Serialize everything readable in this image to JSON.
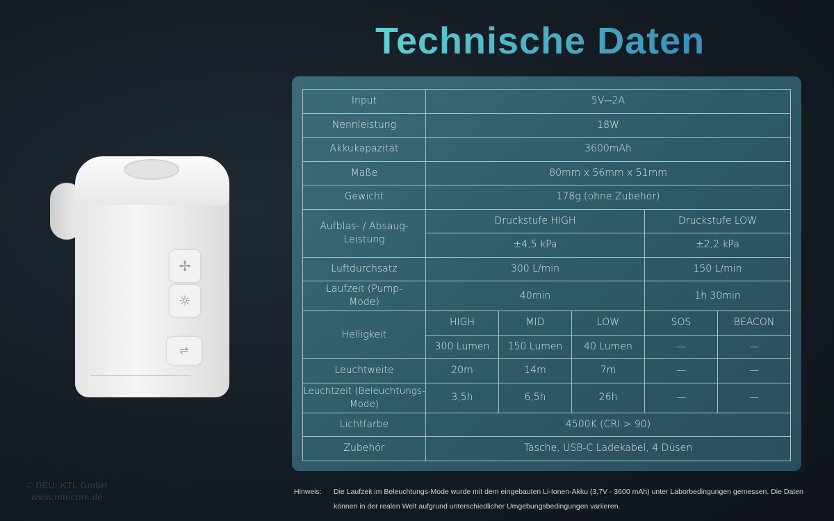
{
  "title": "Technische Daten",
  "table": {
    "input": {
      "label": "Input",
      "value": "5V⎓2A"
    },
    "power": {
      "label": "Nennleistung",
      "value": "18W"
    },
    "capacity": {
      "label": "Akkukapazität",
      "value": "3600mAh"
    },
    "dimensions": {
      "label": "Maße",
      "value": "80mm x 56mm x 51mm"
    },
    "weight": {
      "label": "Gewicht",
      "value": "178g (ohne Zubehör)"
    },
    "pressure": {
      "label": "Aufblas- / Absaug-Leistung",
      "high_label": "Druckstufe HIGH",
      "low_label": "Druckstufe LOW",
      "high": "±4,5 kPa",
      "low": "±2,2 kPa"
    },
    "airflow": {
      "label": "Luftdurchsatz",
      "high": "300 L/min",
      "low": "150 L/min"
    },
    "runtime_pump": {
      "label": "Laufzeit (Pump-Mode)",
      "high": "40min",
      "low": "1h 30min"
    },
    "brightness": {
      "label": "Helligkeit",
      "modes": [
        "HIGH",
        "MID",
        "LOW",
        "SOS",
        "BEACON"
      ],
      "values": [
        "300 Lumen",
        "150 Lumen",
        "40 Lumen",
        "—",
        "—"
      ]
    },
    "throw": {
      "label": "Leuchtweite",
      "values": [
        "20m",
        "14m",
        "7m",
        "—",
        "—"
      ]
    },
    "runtime_light": {
      "label": "Leuchtzeit (Beleuchtungs-Mode)",
      "values": [
        "3,5h",
        "6,5h",
        "26h",
        "—",
        "—"
      ]
    },
    "color": {
      "label": "Lichtfarbe",
      "value": "4500K (CRI > 90)"
    },
    "accessories": {
      "label": "Zubehör",
      "value": "Tasche, USB-C Ladekabel, 4 Düsen"
    }
  },
  "note": {
    "label": "Hinweis:",
    "text": "Die Laufzeit im Beleuchtungs-Mode wurde mit dem eingebauten Li-Ionen-Akku (3,7V - 3600 mAh) unter Laborbedingungen gemessen. Die Daten können in der realen Welt aufgrund unterschiedlicher Umgebungsbedingungen variieren."
  },
  "copyright": {
    "line1": "© DEU: KTL GmbH",
    "line2": "www.nitecore.de"
  },
  "colors": {
    "title_start": "#5fd0d0",
    "title_end": "#3a8fb8",
    "panel": "#3c6b78",
    "background": "#141b22"
  }
}
